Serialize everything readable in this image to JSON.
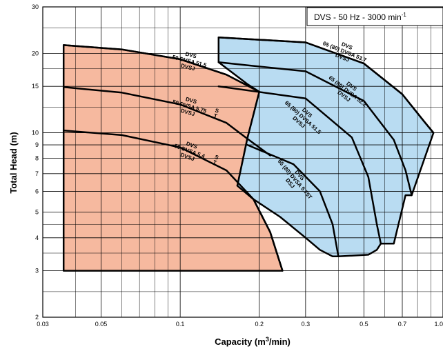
{
  "chart_data": {
    "type": "area",
    "title": "DVS - 50 Hz - 3000 min",
    "title_superscript": "-1",
    "xlabel": "Capacity (m",
    "xlabel_superscript": "3",
    "xlabel_suffix": "/min)",
    "ylabel": "Total Head (m)",
    "x_scale": "log",
    "y_scale": "log",
    "xlim": [
      0.03,
      1.0
    ],
    "ylim": [
      2,
      30
    ],
    "grid": true,
    "x_ticks": [
      {
        "value": 0.03,
        "label": "0.03"
      },
      {
        "value": 0.05,
        "label": "0.05"
      },
      {
        "value": 0.1,
        "label": "0.1"
      },
      {
        "value": 0.2,
        "label": "0.2"
      },
      {
        "value": 0.3,
        "label": "0.3"
      },
      {
        "value": 0.5,
        "label": "0.5"
      },
      {
        "value": 0.7,
        "label": "0.7"
      },
      {
        "value": 1.0,
        "label": "1.0"
      }
    ],
    "x_grid_minor": [
      0.04,
      0.06,
      0.07,
      0.08,
      0.09,
      0.4,
      0.6,
      0.8,
      0.9
    ],
    "y_ticks": [
      {
        "value": 2,
        "label": "2"
      },
      {
        "value": 3,
        "label": "3"
      },
      {
        "value": 4,
        "label": "4"
      },
      {
        "value": 5,
        "label": "5"
      },
      {
        "value": 6,
        "label": "6"
      },
      {
        "value": 7,
        "label": "7"
      },
      {
        "value": 8,
        "label": "8"
      },
      {
        "value": 9,
        "label": "9"
      },
      {
        "value": 10,
        "label": "10"
      },
      {
        "value": 15,
        "label": "15"
      },
      {
        "value": 20,
        "label": "20"
      },
      {
        "value": 30,
        "label": "30"
      }
    ],
    "y_grid_minor": [
      2.5,
      3.5,
      4.5,
      12.5,
      17.5,
      25
    ],
    "colors": {
      "area_50": "#f6b99f",
      "area_65": "#b9dcf2",
      "curve": "#000000",
      "grid": "#000000"
    },
    "series": [
      {
        "group": "50",
        "labels": [
          "DVS",
          "50 DVSA 51.5",
          "DVSJ"
        ],
        "suffix": "",
        "points": [
          [
            0.036,
            21.5
          ],
          [
            0.06,
            20.7
          ],
          [
            0.1,
            19.0
          ],
          [
            0.15,
            16.6
          ],
          [
            0.2,
            14.3
          ]
        ]
      },
      {
        "group": "50",
        "labels": [
          "DVS",
          "50 DVSA 5.75",
          "DVSJ"
        ],
        "suffix": "S T",
        "points": [
          [
            0.036,
            14.9
          ],
          [
            0.06,
            14.2
          ],
          [
            0.1,
            12.8
          ],
          [
            0.15,
            10.9
          ],
          [
            0.18,
            9.5
          ],
          [
            0.22,
            8.2
          ]
        ]
      },
      {
        "group": "50",
        "labels": [
          "DVS",
          "50 DVSA 5.4",
          "DVSJ"
        ],
        "suffix": "S T",
        "points": [
          [
            0.036,
            10.2
          ],
          [
            0.06,
            9.8
          ],
          [
            0.1,
            8.8
          ],
          [
            0.15,
            7.2
          ],
          [
            0.19,
            5.6
          ],
          [
            0.22,
            4.2
          ],
          [
            0.245,
            3.0
          ]
        ]
      },
      {
        "group": "65",
        "labels": [
          "DVS",
          "65 (80) DVSA 53.7",
          "DVSJ"
        ],
        "suffix": "",
        "points": [
          [
            0.14,
            23.0
          ],
          [
            0.3,
            22.0
          ],
          [
            0.5,
            18.3
          ],
          [
            0.7,
            14.0
          ],
          [
            0.85,
            11.0
          ],
          [
            0.92,
            10.0
          ]
        ]
      },
      {
        "group": "65",
        "labels": [
          "DVS",
          "65 (80) DVSA 52.2",
          "DVSJ"
        ],
        "suffix": "",
        "points": [
          [
            0.14,
            18.5
          ],
          [
            0.3,
            17.1
          ],
          [
            0.5,
            13.2
          ],
          [
            0.65,
            9.4
          ],
          [
            0.72,
            7.2
          ],
          [
            0.76,
            5.8
          ]
        ]
      },
      {
        "group": "65",
        "labels": [
          "DVS",
          "65 (80) DVSA 51.5",
          "DVSJ"
        ],
        "suffix": "",
        "points": [
          [
            0.14,
            15.0
          ],
          [
            0.3,
            13.5
          ],
          [
            0.45,
            9.6
          ],
          [
            0.52,
            6.8
          ],
          [
            0.56,
            4.5
          ],
          [
            0.58,
            3.8
          ]
        ]
      },
      {
        "group": "65",
        "labels": [
          "DVS",
          "65 (80) DVSA 5.75T",
          "DSJ"
        ],
        "suffix": "",
        "points": [
          [
            0.18,
            9.0
          ],
          [
            0.27,
            7.6
          ],
          [
            0.34,
            6.0
          ],
          [
            0.38,
            4.5
          ],
          [
            0.4,
            3.4
          ]
        ]
      }
    ],
    "envelopes": [
      {
        "group": "50",
        "points": [
          [
            0.036,
            3.0
          ],
          [
            0.036,
            21.5
          ],
          [
            0.06,
            20.7
          ],
          [
            0.1,
            19.0
          ],
          [
            0.15,
            16.6
          ],
          [
            0.2,
            14.3
          ],
          [
            0.18,
            9.5
          ],
          [
            0.165,
            6.3
          ],
          [
            0.19,
            5.6
          ],
          [
            0.22,
            4.2
          ],
          [
            0.245,
            3.0
          ]
        ]
      },
      {
        "group": "65",
        "points": [
          [
            0.14,
            18.5
          ],
          [
            0.14,
            23.0
          ],
          [
            0.3,
            22.0
          ],
          [
            0.5,
            18.3
          ],
          [
            0.7,
            14.0
          ],
          [
            0.85,
            11.0
          ],
          [
            0.92,
            10.0
          ],
          [
            0.76,
            5.8
          ],
          [
            0.72,
            5.8
          ],
          [
            0.65,
            3.8
          ],
          [
            0.58,
            3.8
          ],
          [
            0.56,
            3.6
          ],
          [
            0.52,
            3.45
          ],
          [
            0.4,
            3.4
          ],
          [
            0.38,
            3.4
          ],
          [
            0.34,
            3.6
          ],
          [
            0.3,
            4.0
          ],
          [
            0.24,
            4.8
          ],
          [
            0.19,
            5.6
          ],
          [
            0.165,
            6.3
          ],
          [
            0.18,
            9.5
          ],
          [
            0.2,
            14.3
          ],
          [
            0.18,
            15.3
          ]
        ]
      }
    ]
  }
}
